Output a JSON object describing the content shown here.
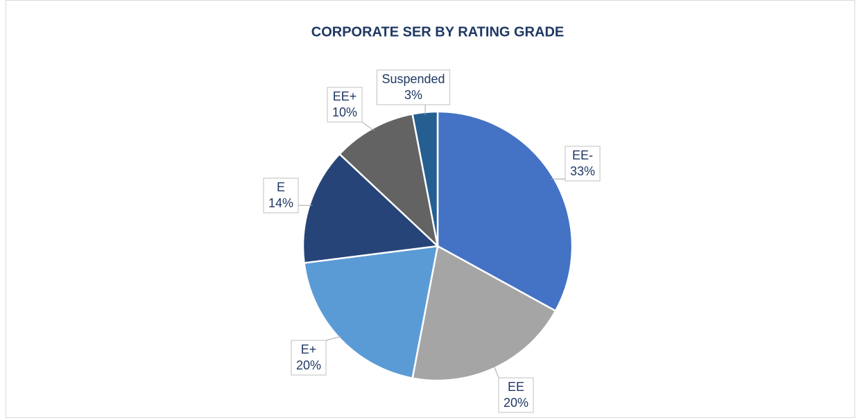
{
  "chart_data": {
    "type": "pie",
    "title": "CORPORATE SER BY RATING GRADE",
    "categories": [
      "EE-",
      "EE",
      "E+",
      "E",
      "EE+",
      "Suspended"
    ],
    "values": [
      33,
      20,
      20,
      14,
      10,
      3
    ],
    "value_labels": [
      "33%",
      "20%",
      "20%",
      "14%",
      "10%",
      "3%"
    ],
    "colors": [
      "#4472c4",
      "#a5a5a5",
      "#5b9bd5",
      "#264478",
      "#636363",
      "#255e91"
    ]
  }
}
